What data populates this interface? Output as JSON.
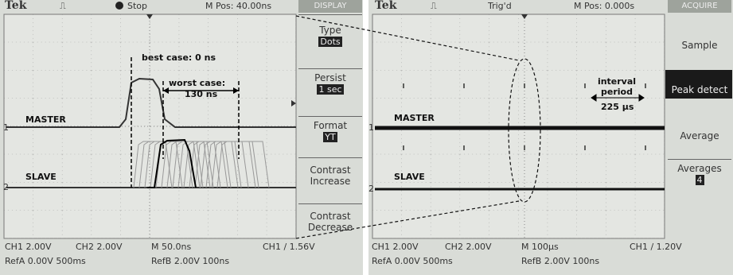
{
  "left_scope": {
    "header": {
      "brand": "Tek",
      "status": "Stop",
      "position": "M Pos: 40.00ns",
      "menu_title": "DISPLAY"
    },
    "menu": [
      {
        "label": "Type",
        "value": "Dots"
      },
      {
        "label": "Persist",
        "value": "1 sec"
      },
      {
        "label": "Format",
        "value": "YT"
      },
      {
        "label": "Contrast Increase"
      },
      {
        "label": "Contrast Decrease"
      }
    ],
    "annotations": {
      "best_case": "best case: 0 ns",
      "worst_case": "worst case:",
      "worst_case_value": "130 ns"
    },
    "traces": {
      "top": "MASTER",
      "top_marker": "1",
      "bottom": "SLAVE",
      "bottom_marker": "2"
    },
    "footer": {
      "ch1": "CH1  2.00V",
      "ch2": "CH2  2.00V",
      "timebase": "M 50.0ns",
      "trigger": "CH1 / 1.56V",
      "ref_a": "RefA 0.00V 500ms",
      "ref_b": "RefB 2.00V 100ns"
    }
  },
  "right_scope": {
    "header": {
      "brand": "Tek",
      "status": "Trig'd",
      "position": "M Pos: 0.000s",
      "menu_title": "ACQUIRE"
    },
    "menu": [
      {
        "label": "Sample"
      },
      {
        "label": "Peak detect"
      },
      {
        "label": "Average"
      },
      {
        "label": "Averages",
        "value": "4"
      }
    ],
    "annotations": {
      "interval": "interval period",
      "interval_value": "225 µs"
    },
    "traces": {
      "top": "MASTER",
      "top_marker": "1",
      "bottom": "SLAVE",
      "bottom_marker": "2"
    },
    "footer": {
      "ch1": "CH1  2.00V",
      "ch2": "CH2  2.00V",
      "timebase": "M 100µs",
      "trigger": "CH1 / 1.20V",
      "ref_a": "RefA 0.00V 500ms",
      "ref_b": "RefB 2.00V 100ns"
    }
  }
}
